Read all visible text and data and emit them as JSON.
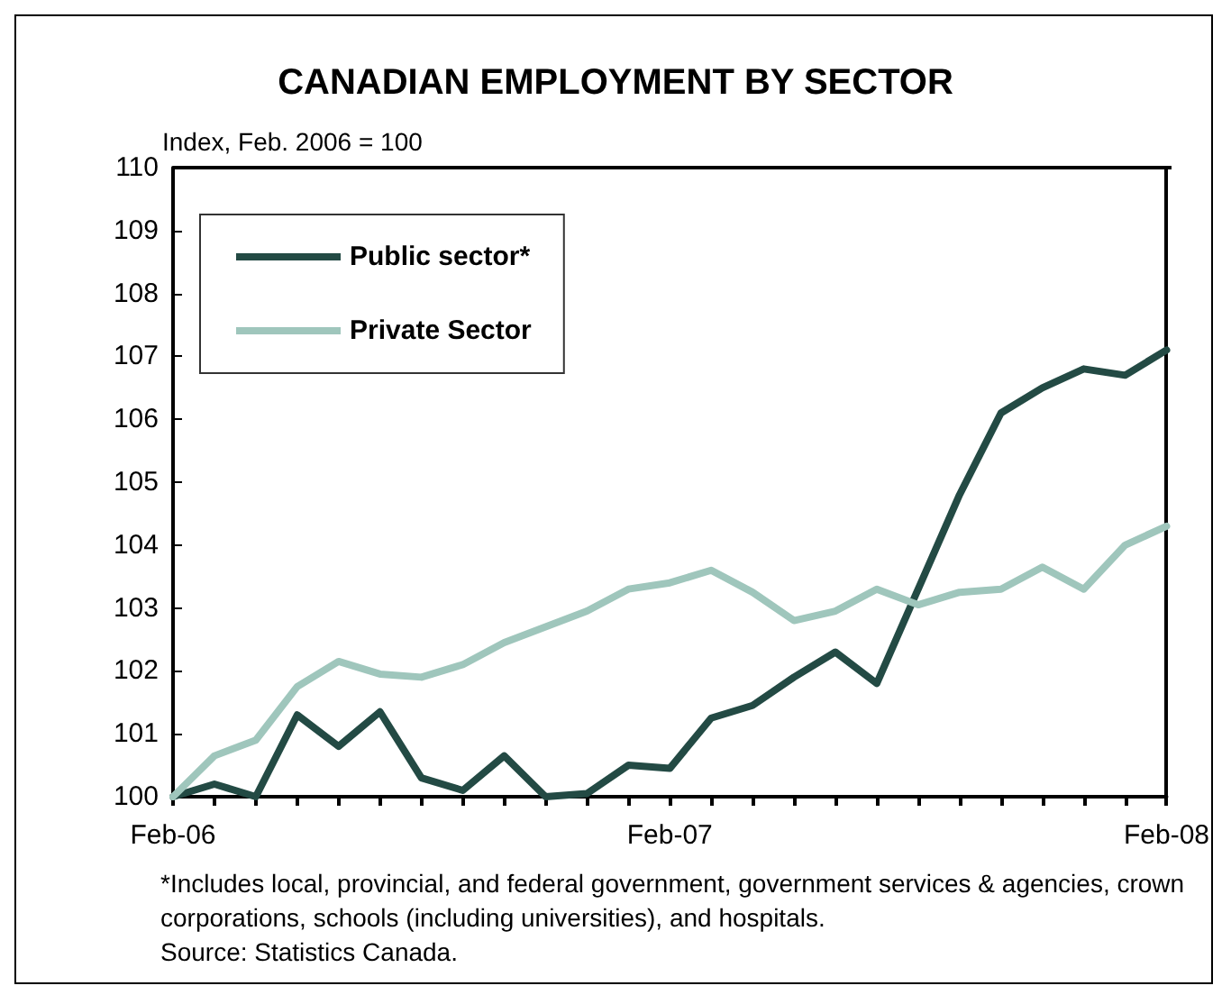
{
  "chart_data": {
    "type": "line",
    "title": "CANADIAN EMPLOYMENT BY SECTOR",
    "ylabel": "Index, Feb. 2006 = 100",
    "categories": [
      "Feb-06",
      null,
      null,
      null,
      null,
      null,
      null,
      null,
      null,
      null,
      null,
      null,
      "Feb-07",
      null,
      null,
      null,
      null,
      null,
      null,
      null,
      null,
      null,
      null,
      null,
      "Feb-08"
    ],
    "series": [
      {
        "name": "Public sector*",
        "color": "#234a44",
        "values": [
          100,
          100.2,
          100.0,
          101.3,
          100.8,
          101.35,
          100.3,
          100.1,
          100.65,
          100.0,
          100.05,
          100.5,
          100.45,
          101.25,
          101.45,
          101.9,
          102.3,
          101.8,
          103.3,
          104.8,
          106.1,
          106.5,
          106.8,
          106.7,
          107.1
        ]
      },
      {
        "name": "Private Sector",
        "color": "#9fc6bc",
        "values": [
          100,
          100.65,
          100.9,
          101.75,
          102.15,
          101.95,
          101.9,
          102.1,
          102.45,
          102.7,
          102.95,
          103.3,
          103.4,
          103.6,
          103.25,
          102.8,
          102.95,
          103.3,
          103.05,
          103.25,
          103.3,
          103.65,
          103.3,
          104.0,
          104.3
        ]
      }
    ],
    "ylim": [
      100,
      110
    ],
    "yticks": [
      100,
      101,
      102,
      103,
      104,
      105,
      106,
      107,
      108,
      109,
      110
    ],
    "grid": false,
    "legend": "top left",
    "marker": "none",
    "line_style": "solid",
    "annotations": [
      "*Includes local, provincial, and federal government, government services & agencies, crown corporations, schools (including universities), and hospitals.",
      "Source: Statistics Canada."
    ]
  }
}
